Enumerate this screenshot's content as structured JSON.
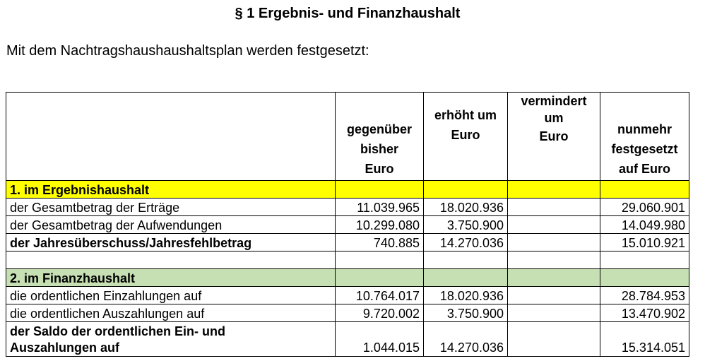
{
  "title": "§ 1 Ergebnis- und Finanzhaushalt",
  "intro": "Mit dem Nachtragshaushaushaltsplan werden festgesetzt:",
  "table": {
    "headers": {
      "label": "",
      "bisher_line1": "gegenüber",
      "bisher_line2": "bisher",
      "bisher_line3": "Euro",
      "erhoeht_line1": "erhöht um",
      "erhoeht_line2": "Euro",
      "vermindert_line1": "vermindert",
      "vermindert_line2": "um",
      "vermindert_line3": "Euro",
      "nunmehr_line1": "nunmehr",
      "nunmehr_line2": "festgesetzt",
      "nunmehr_line3": "auf Euro"
    },
    "section1": {
      "label": "1. im Ergebnishaushalt",
      "rows": [
        {
          "label": "der Gesamtbetrag der Erträge",
          "bisher": "11.039.965",
          "erhoeht": "18.020.936",
          "vermindert": "",
          "nunmehr": "29.060.901"
        },
        {
          "label": "der Gesamtbetrag der Aufwendungen",
          "bisher": "10.299.080",
          "erhoeht": "3.750.900",
          "vermindert": "",
          "nunmehr": "14.049.980"
        },
        {
          "label": "der Jahresüberschuss/Jahresfehlbetrag",
          "bisher": "740.885",
          "erhoeht": "14.270.036",
          "vermindert": "",
          "nunmehr": "15.010.921"
        }
      ]
    },
    "section2": {
      "label": "2. im Finanzhaushalt",
      "rows": [
        {
          "label": "die ordentlichen Einzahlungen auf",
          "bisher": "10.764.017",
          "erhoeht": "18.020.936",
          "vermindert": "",
          "nunmehr": "28.784.953"
        },
        {
          "label": "die ordentlichen Auszahlungen auf",
          "bisher": "9.720.002",
          "erhoeht": "3.750.900",
          "vermindert": "",
          "nunmehr": "13.470.902"
        },
        {
          "label_line1": "der Saldo der ordentlichen Ein- und",
          "label_line2": "Auszahlungen auf",
          "bisher": "1.044.015",
          "erhoeht": "14.270.036",
          "vermindert": "",
          "nunmehr": "15.314.051"
        }
      ]
    }
  }
}
